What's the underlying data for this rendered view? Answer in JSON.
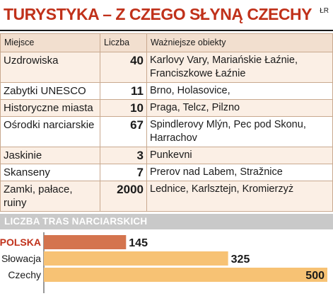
{
  "header": {
    "title": "TURYSTYKA – Z CZEGO SŁYNĄ CZECHY",
    "source": "ŁR"
  },
  "table": {
    "columns": [
      "Miejsce",
      "Liczba",
      "Ważniejsze obiekty"
    ],
    "rows": [
      {
        "place": "Uzdrowiska",
        "count": "40",
        "objects": "Karlovy Vary, Mariańskie Łaźnie, Franciszkowe Łaźnie"
      },
      {
        "place": "Zabytki UNESCO",
        "count": "11",
        "objects": "Brno, Holasovice,"
      },
      {
        "place": "Historyczne miasta",
        "count": "10",
        "objects": "Praga, Telcz, Pilzno"
      },
      {
        "place": "Ośrodki narciarskie",
        "count": "67",
        "objects": "Spindlerovy Mlýn, Pec pod Skonu, Harrachov"
      },
      {
        "place": "Jaskinie",
        "count": "3",
        "objects": "Punkevni"
      },
      {
        "place": "Skanseny",
        "count": "7",
        "objects": "Prerov nad Labem, Stražnice"
      },
      {
        "place": "Zamki, pałace, ruiny",
        "count": "2000",
        "objects": "Lednice, Karlsztejn, Kromierzyż"
      }
    ]
  },
  "chart_data": {
    "type": "bar",
    "orientation": "horizontal",
    "title": "LICZBA TRAS NARCIARSKICH",
    "categories": [
      "POLSKA",
      "Słowacja",
      "Czechy"
    ],
    "values": [
      145,
      325,
      500
    ],
    "xlim": [
      0,
      500
    ],
    "grid": false,
    "legend": "none",
    "colors": {
      "highlight": "#d4744e",
      "default": "#f7c274",
      "highlight_label": "#c0311a"
    }
  }
}
